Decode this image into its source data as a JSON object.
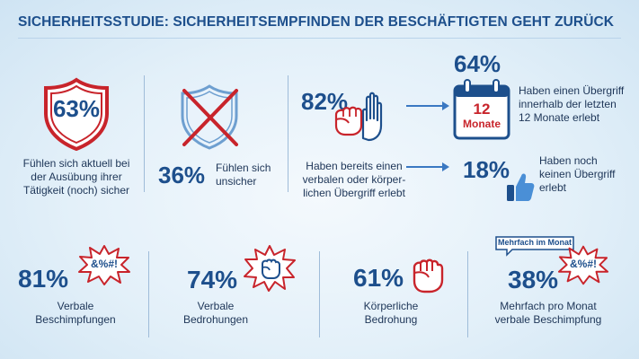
{
  "title": "SICHERHEITSSTUDIE: SICHERHEITSEMPFINDEN DER BESCHÄFTIGTEN GEHT ZURÜCK",
  "colors": {
    "blue": "#1d4f8c",
    "red": "#c8242b",
    "light_blue": "#cfe4f3"
  },
  "stats": {
    "sicher": {
      "value": "63%",
      "label_line1": "Fühlen sich aktuell bei",
      "label_line2": "der Ausübung ihrer",
      "label_line3": "Tätigkeit (noch) sicher",
      "icon": "shield-icon"
    },
    "unsicher": {
      "value": "36%",
      "label_line1": "Fühlen sich",
      "label_line2": "unsicher",
      "icon": "crossed-shield-icon"
    },
    "uebergriff": {
      "value": "82%",
      "label_line1": "Haben bereits einen",
      "label_line2": "verbalen oder körper-",
      "label_line3": "lichen Übergriff erlebt",
      "icon": "raised-hand-fist-icon"
    },
    "zwoelf_monate": {
      "value": "64%",
      "label_line1": "Haben einen Übergriff",
      "label_line2": "innerhalb der letzten",
      "label_line3": "12 Monate erlebt",
      "calendar_number": "12",
      "calendar_text": "Monate",
      "icon": "calendar-icon"
    },
    "kein_uebergriff": {
      "value": "18%",
      "label_line1": "Haben noch",
      "label_line2": "keinen Übergriff",
      "label_line3": "erlebt",
      "icon": "thumbs-up-icon"
    },
    "beschimpfungen": {
      "value": "81%",
      "label_line1": "Verbale",
      "label_line2": "Beschimpfungen",
      "burst_text": "&%#!",
      "icon": "swear-burst-icon"
    },
    "bedrohungen": {
      "value": "74%",
      "label_line1": "Verbale",
      "label_line2": "Bedrohungen",
      "icon": "fist-burst-icon"
    },
    "koerperlich": {
      "value": "61%",
      "label_line1": "Körperliche",
      "label_line2": "Bedrohung",
      "icon": "fist-icon"
    },
    "mehrfach": {
      "value": "38%",
      "label_line1": "Mehrfach pro Monat",
      "label_line2": "verbale Beschimpfung",
      "bubble_text": "Mehrfach im Monat",
      "burst_text": "&%#!",
      "icon": "speech-bubble-burst-icon"
    }
  }
}
